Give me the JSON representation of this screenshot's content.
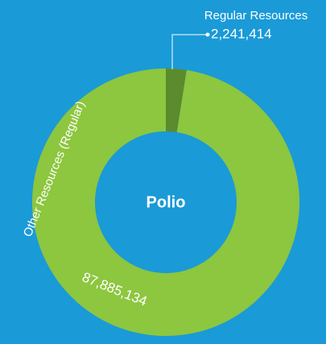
{
  "chart_data": {
    "type": "donut",
    "title": "Polio",
    "categories": [
      "Regular Resources",
      "Other Resources (Regular)"
    ],
    "values": [
      2241414,
      87885134
    ],
    "value_labels": [
      "2,241,414",
      "87,885,134"
    ],
    "colors": [
      "#5b8b2c",
      "#8dc63f"
    ]
  }
}
